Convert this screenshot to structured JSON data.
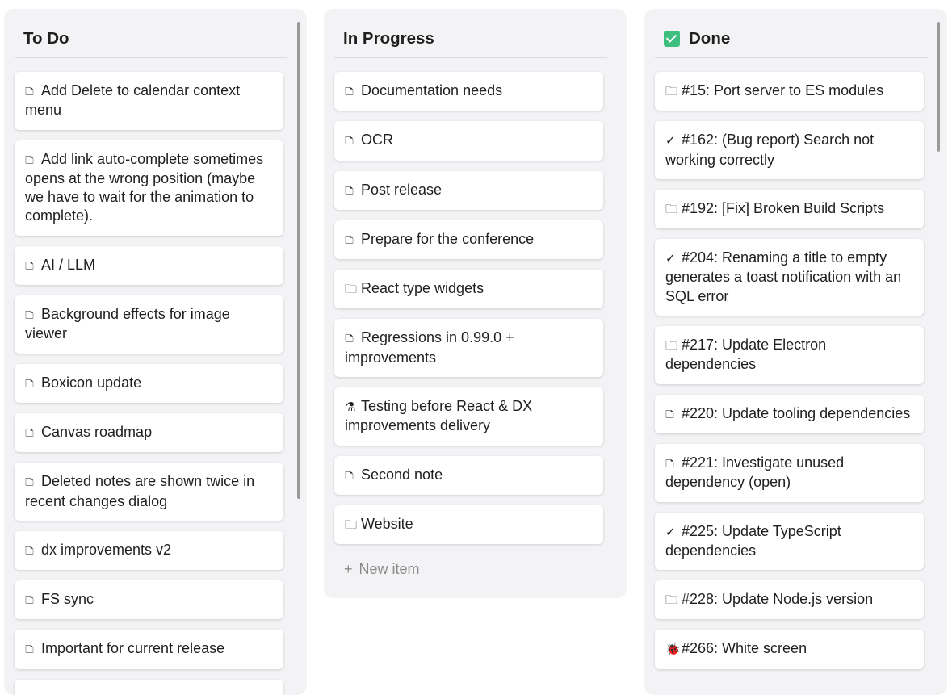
{
  "columns": [
    {
      "title": "To Do",
      "icon": null,
      "items": [
        {
          "icon": "note-icon",
          "text": "Add Delete to calendar context menu"
        },
        {
          "icon": "note-icon",
          "text": "Add link auto-complete sometimes opens at the wrong position (maybe we have to wait for the animation to complete)."
        },
        {
          "icon": "note-icon",
          "text": "AI / LLM"
        },
        {
          "icon": "note-icon",
          "text": "Background effects for image viewer"
        },
        {
          "icon": "note-icon",
          "text": "Boxicon update"
        },
        {
          "icon": "note-icon",
          "text": "Canvas roadmap"
        },
        {
          "icon": "note-icon",
          "text": "Deleted notes are shown twice in recent changes dialog"
        },
        {
          "icon": "note-icon",
          "text": "dx improvements v2"
        },
        {
          "icon": "note-icon",
          "text": "FS sync"
        },
        {
          "icon": "note-icon",
          "text": "Important for current release"
        }
      ]
    },
    {
      "title": "In Progress",
      "icon": null,
      "items": [
        {
          "icon": "note-icon",
          "text": "Documentation needs"
        },
        {
          "icon": "note-icon",
          "text": "OCR"
        },
        {
          "icon": "note-icon",
          "text": "Post release"
        },
        {
          "icon": "note-icon",
          "text": "Prepare for the conference"
        },
        {
          "icon": "folder-icon",
          "text": "React type widgets"
        },
        {
          "icon": "note-icon",
          "text": "Regressions in 0.99.0 + improvements"
        },
        {
          "icon": "test-tube-icon",
          "text": "Testing before React & DX improvements delivery"
        },
        {
          "icon": "note-icon",
          "text": "Second note"
        },
        {
          "icon": "folder-icon",
          "text": "Website"
        }
      ],
      "new_item_label": "New item"
    },
    {
      "title": "Done",
      "icon": "check-box-icon",
      "icon_color": "#3fbf7f",
      "items": [
        {
          "icon": "folder-icon",
          "text": "#15: Port server to ES modules"
        },
        {
          "icon": "check-icon",
          "text": "#162: (Bug report) Search not working correctly"
        },
        {
          "icon": "folder-icon",
          "text": "#192: [Fix] Broken Build Scripts"
        },
        {
          "icon": "check-icon",
          "text": "#204: Renaming a title to empty generates a toast notification with an SQL error"
        },
        {
          "icon": "folder-icon",
          "text": "#217: Update Electron dependencies"
        },
        {
          "icon": "note-icon",
          "text": "#220: Update tooling dependencies"
        },
        {
          "icon": "note-icon",
          "text": "#221: Investigate unused dependency (open)"
        },
        {
          "icon": "check-icon",
          "text": "#225: Update TypeScript dependencies"
        },
        {
          "icon": "folder-icon",
          "text": "#228: Update Node.js version"
        },
        {
          "icon": "bug-icon",
          "text": "#266: White screen"
        }
      ]
    }
  ],
  "icons": {
    "note-icon": "🗅",
    "folder-icon": "🗀",
    "check-icon": "✓",
    "test-tube-icon": "🧪",
    "bug-icon": "🐞"
  }
}
